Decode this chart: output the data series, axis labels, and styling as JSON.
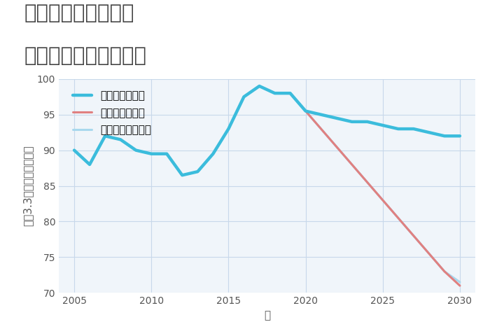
{
  "title_line1": "愛知県碧南市錦町の",
  "title_line2": "中古戸建ての価格推移",
  "xlabel": "年",
  "ylabel": "坪（3.3㎡）単価（万円）",
  "background_color": "#ffffff",
  "plot_bg_color": "#f0f5fa",
  "grid_color": "#c8d8ea",
  "xlim": [
    2004,
    2031
  ],
  "ylim": [
    70,
    100
  ],
  "yticks": [
    70,
    75,
    80,
    85,
    90,
    95,
    100
  ],
  "xticks": [
    2005,
    2010,
    2015,
    2020,
    2025,
    2030
  ],
  "good_scenario": {
    "label": "グッドシナリオ",
    "color": "#3bbcdc",
    "linewidth": 3.2,
    "x": [
      2005,
      2006,
      2007,
      2008,
      2009,
      2010,
      2011,
      2012,
      2013,
      2014,
      2015,
      2016,
      2017,
      2018,
      2019,
      2020,
      2021,
      2022,
      2023,
      2024,
      2025,
      2026,
      2027,
      2028,
      2029,
      2030
    ],
    "y": [
      90.0,
      88.0,
      92.0,
      91.5,
      90.0,
      89.5,
      89.5,
      86.5,
      87.0,
      89.5,
      93.0,
      97.5,
      99.0,
      98.0,
      98.0,
      95.5,
      95.0,
      94.5,
      94.0,
      94.0,
      93.5,
      93.0,
      93.0,
      92.5,
      92.0,
      92.0
    ]
  },
  "bad_scenario": {
    "label": "バッドシナリオ",
    "color": "#e08080",
    "linewidth": 2.2,
    "x": [
      2020,
      2021,
      2022,
      2023,
      2024,
      2025,
      2026,
      2027,
      2028,
      2029,
      2030
    ],
    "y": [
      95.5,
      93.0,
      90.5,
      88.0,
      85.5,
      83.0,
      80.5,
      78.0,
      75.5,
      73.0,
      71.0
    ]
  },
  "normal_scenario": {
    "label": "ノーマルシナリオ",
    "color": "#a8d8ee",
    "linewidth": 2.2,
    "x": [
      2005,
      2006,
      2007,
      2008,
      2009,
      2010,
      2011,
      2012,
      2013,
      2014,
      2015,
      2016,
      2017,
      2018,
      2019,
      2020,
      2021,
      2022,
      2023,
      2024,
      2025,
      2026,
      2027,
      2028,
      2029,
      2030
    ],
    "y": [
      90.0,
      88.0,
      92.0,
      91.5,
      90.0,
      89.5,
      89.5,
      86.5,
      87.0,
      89.5,
      93.0,
      97.5,
      99.0,
      98.0,
      98.0,
      95.5,
      93.0,
      90.5,
      88.0,
      85.5,
      83.0,
      80.5,
      78.0,
      75.5,
      73.0,
      71.5
    ]
  },
  "title_fontsize": 21,
  "axis_label_fontsize": 11,
  "tick_fontsize": 10,
  "legend_fontsize": 11
}
